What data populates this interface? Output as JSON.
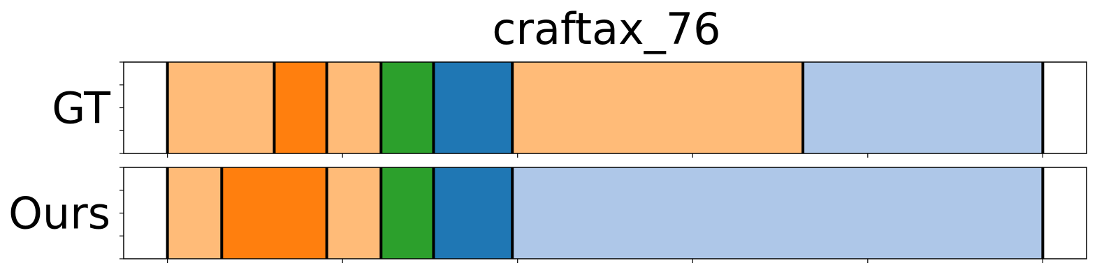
{
  "chart_data": {
    "type": "segmentation-timeline",
    "title": "craftax_76",
    "xlabel": "",
    "ylabel": "",
    "xlim": [
      0,
      550
    ],
    "x_ticks": [
      25,
      125,
      225,
      325,
      425,
      525
    ],
    "y_ticks_per_row": 5,
    "grid": false,
    "legend": "none",
    "rows": [
      {
        "label": "GT",
        "segments": [
          {
            "start": 25,
            "end": 86,
            "color": "#ffbb78"
          },
          {
            "start": 86,
            "end": 116,
            "color": "#ff7f0e"
          },
          {
            "start": 116,
            "end": 147,
            "color": "#ffbb78"
          },
          {
            "start": 147,
            "end": 177,
            "color": "#2ca02c"
          },
          {
            "start": 177,
            "end": 222,
            "color": "#1f77b4"
          },
          {
            "start": 222,
            "end": 388,
            "color": "#ffbb78"
          },
          {
            "start": 388,
            "end": 525,
            "color": "#aec7e8"
          }
        ]
      },
      {
        "label": "Ours",
        "segments": [
          {
            "start": 25,
            "end": 56,
            "color": "#ffbb78"
          },
          {
            "start": 56,
            "end": 116,
            "color": "#ff7f0e"
          },
          {
            "start": 116,
            "end": 147,
            "color": "#ffbb78"
          },
          {
            "start": 147,
            "end": 177,
            "color": "#2ca02c"
          },
          {
            "start": 177,
            "end": 222,
            "color": "#1f77b4"
          },
          {
            "start": 222,
            "end": 525,
            "color": "#aec7e8"
          }
        ]
      }
    ]
  }
}
